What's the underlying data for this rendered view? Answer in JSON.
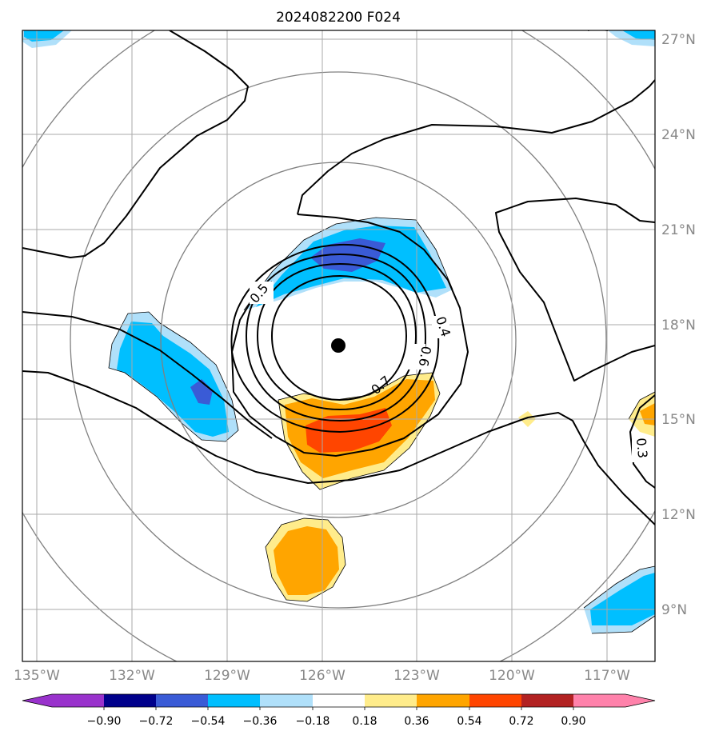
{
  "title": "2024082200 F024",
  "map": {
    "lon_labels": [
      "135°W",
      "132°W",
      "129°W",
      "126°W",
      "123°W",
      "120°W",
      "117°W"
    ],
    "lat_labels": [
      "27°N",
      "24°N",
      "21°N",
      "18°N",
      "15°N",
      "12°N",
      "9°N"
    ],
    "center_marker": "storm-center"
  },
  "contour_labels": [
    "0.4",
    "0.5",
    "0.6",
    "0.7",
    "0.3"
  ],
  "colorbar": {
    "ticks": [
      "−0.90",
      "−0.72",
      "−0.54",
      "−0.36",
      "−0.18",
      "0.18",
      "0.36",
      "0.54",
      "0.72",
      "0.90"
    ],
    "colors": [
      "#9932cc",
      "#00008b",
      "#3a5bd6",
      "#00bfff",
      "#b0e0fa",
      "#ffffff",
      "#ffec8b",
      "#ffa500",
      "#ff4500",
      "#b22222",
      "#ff82ab"
    ]
  }
}
